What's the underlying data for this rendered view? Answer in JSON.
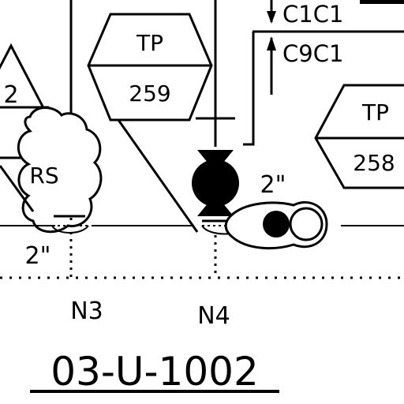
{
  "labels": {
    "c1c1": "C1C1",
    "c9c1": "C9C1",
    "tp_left": "TP",
    "tp_left_num": "259",
    "tp_right": "TP",
    "tp_right_num": "258",
    "tri_num": "2",
    "rs": "RS",
    "size_mid": "2\"",
    "size_left": "2\"",
    "node_n3": "N3",
    "node_n4": "N4",
    "drawing_id": "03-U-1002"
  },
  "colors": {
    "ink": "#000000",
    "paper": "#ffffff"
  }
}
